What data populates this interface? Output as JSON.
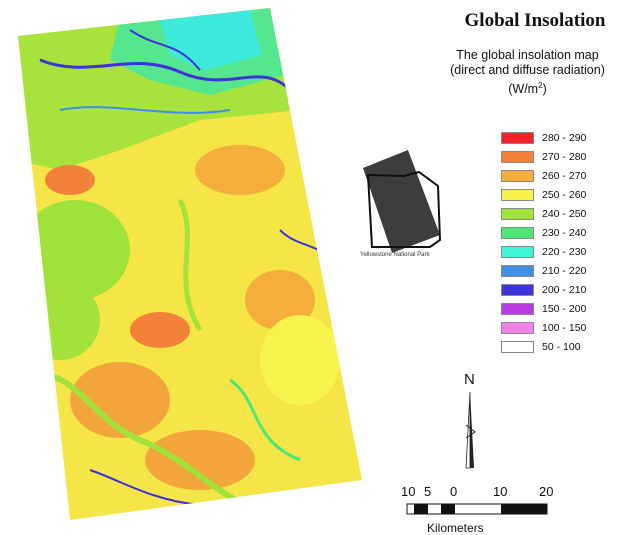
{
  "title": "Global Insolation",
  "subtitle": {
    "line1": "The global insolation map",
    "line2": "(direct and diffuse radiation)",
    "unit_base": "(W/m",
    "unit_sup": "2",
    "unit_end": ")"
  },
  "legend": [
    {
      "label": "280 - 290",
      "color": "#f2232b"
    },
    {
      "label": "270 - 280",
      "color": "#f2813a"
    },
    {
      "label": "260 - 270",
      "color": "#f5ad3c"
    },
    {
      "label": "250 - 260",
      "color": "#f7f04a"
    },
    {
      "label": "240 - 250",
      "color": "#a3e23a"
    },
    {
      "label": "230 - 240",
      "color": "#4be675"
    },
    {
      "label": "220 - 230",
      "color": "#3ef5d8"
    },
    {
      "label": "210 - 220",
      "color": "#3f8ee8"
    },
    {
      "label": "200 - 210",
      "color": "#3d33d9"
    },
    {
      "label": "150 - 200",
      "color": "#b83be0"
    },
    {
      "label": "100 - 150",
      "color": "#f083ea"
    },
    {
      "label": "50 - 100",
      "color": "#ffffff"
    }
  ],
  "locator": {
    "label": "Yellowstone National Park"
  },
  "north_arrow": {
    "label": "N"
  },
  "scale_bar": {
    "ticks": [
      "10",
      "5",
      "0",
      "10",
      "20"
    ],
    "unit": "Kilometers"
  }
}
